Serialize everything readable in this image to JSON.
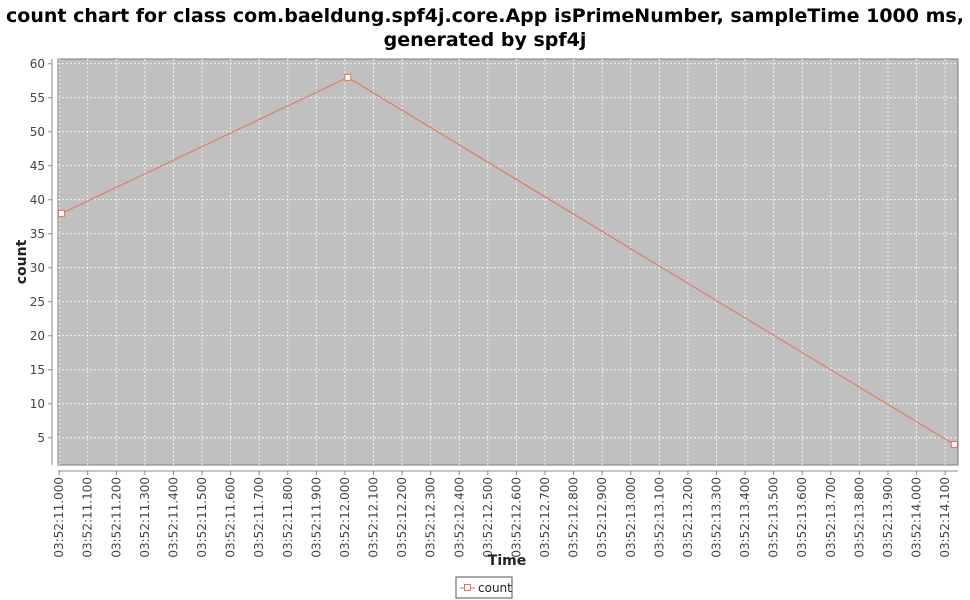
{
  "chart_data": {
    "type": "line",
    "title_lines": [
      "count chart for class com.baeldung.spf4j.core.App isPrimeNumber, sampleTime 1000 ms,",
      "generated by spf4j"
    ],
    "xlabel": "Time",
    "ylabel": "count",
    "x_tick_labels": [
      "03:52:11.000",
      "03:52:11.100",
      "03:52:11.200",
      "03:52:11.300",
      "03:52:11.400",
      "03:52:11.500",
      "03:52:11.600",
      "03:52:11.700",
      "03:52:11.800",
      "03:52:11.900",
      "03:52:12.000",
      "03:52:12.100",
      "03:52:12.200",
      "03:52:12.300",
      "03:52:12.400",
      "03:52:12.500",
      "03:52:12.600",
      "03:52:12.700",
      "03:52:12.800",
      "03:52:12.900",
      "03:52:13.000",
      "03:52:13.100",
      "03:52:13.200",
      "03:52:13.300",
      "03:52:13.400",
      "03:52:13.500",
      "03:52:13.600",
      "03:52:13.700",
      "03:52:13.800",
      "03:52:13.900",
      "03:52:14.000",
      "03:52:14.100"
    ],
    "y_ticks": [
      5,
      10,
      15,
      20,
      25,
      30,
      35,
      40,
      45,
      50,
      55,
      60
    ],
    "ylim": [
      1,
      60.7
    ],
    "xlim": [
      "03:52:10.996",
      "03:52:14.145"
    ],
    "grid": true,
    "legend_position": "bottom",
    "series": [
      {
        "name": "count",
        "color": "#e8705f",
        "points": [
          {
            "x": "03:52:11.008",
            "y": 38
          },
          {
            "x": "03:52:12.010",
            "y": 58
          },
          {
            "x": "03:52:14.132",
            "y": 4
          }
        ]
      }
    ],
    "plot_background": "#c0c0c0",
    "grid_color": "#ffffff"
  }
}
